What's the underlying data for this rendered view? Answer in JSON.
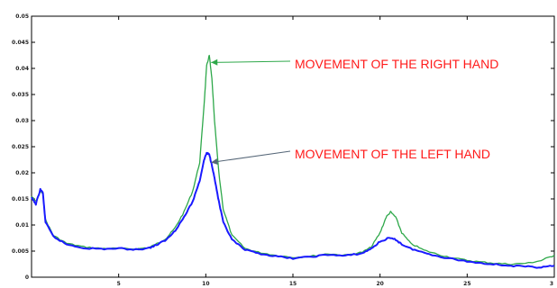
{
  "chart_data": {
    "type": "line",
    "title": "",
    "xlabel": "",
    "ylabel": "",
    "xlim": [
      0,
      60
    ],
    "ylim": [
      0,
      0.05
    ],
    "x_ticks": [
      0,
      10,
      20,
      30,
      40,
      50,
      60
    ],
    "x_tick_labels": [
      "",
      "5",
      "10",
      "15",
      "20",
      "25",
      "3"
    ],
    "y_ticks": [
      0,
      0.005,
      0.01,
      0.015,
      0.02,
      0.025,
      0.03,
      0.035,
      0.04,
      0.045,
      0.05
    ],
    "y_tick_labels": [
      "0",
      "0.005",
      "0.01",
      "0.015",
      "0.02",
      "0.025",
      "0.03",
      "0.035",
      "0.04",
      "0.045",
      "0.05"
    ],
    "grid": false,
    "series": [
      {
        "color": "#2ea84a",
        "points": [
          [
            0,
            0.0155
          ],
          [
            0.5,
            0.0145
          ],
          [
            1,
            0.0165
          ],
          [
            1.3,
            0.016
          ],
          [
            1.6,
            0.011
          ],
          [
            2.5,
            0.008
          ],
          [
            4,
            0.0065
          ],
          [
            6,
            0.0058
          ],
          [
            8,
            0.0055
          ],
          [
            10,
            0.0055
          ],
          [
            12,
            0.0054
          ],
          [
            13.5,
            0.0057
          ],
          [
            14.5,
            0.0065
          ],
          [
            15.5,
            0.0075
          ],
          [
            16.5,
            0.0095
          ],
          [
            17.5,
            0.0125
          ],
          [
            18.5,
            0.0165
          ],
          [
            19.3,
            0.022
          ],
          [
            19.8,
            0.033
          ],
          [
            20.1,
            0.0405
          ],
          [
            20.4,
            0.0425
          ],
          [
            20.7,
            0.038
          ],
          [
            21,
            0.03
          ],
          [
            21.5,
            0.02
          ],
          [
            22,
            0.013
          ],
          [
            23,
            0.008
          ],
          [
            24.5,
            0.0055
          ],
          [
            26,
            0.0048
          ],
          [
            28,
            0.0042
          ],
          [
            30,
            0.0038
          ],
          [
            32,
            0.004
          ],
          [
            34,
            0.0045
          ],
          [
            36,
            0.0042
          ],
          [
            38,
            0.0048
          ],
          [
            39,
            0.0058
          ],
          [
            40,
            0.0085
          ],
          [
            40.7,
            0.0115
          ],
          [
            41.2,
            0.0125
          ],
          [
            41.8,
            0.0115
          ],
          [
            42.5,
            0.0085
          ],
          [
            43.5,
            0.0065
          ],
          [
            45,
            0.0052
          ],
          [
            47,
            0.0042
          ],
          [
            49,
            0.0035
          ],
          [
            51,
            0.003
          ],
          [
            53,
            0.0027
          ],
          [
            55,
            0.0025
          ],
          [
            57,
            0.0027
          ],
          [
            58.5,
            0.0032
          ],
          [
            60,
            0.0042
          ]
        ]
      },
      {
        "color": "#1a1aff",
        "points": [
          [
            0,
            0.0152
          ],
          [
            0.5,
            0.014
          ],
          [
            1,
            0.0168
          ],
          [
            1.3,
            0.0162
          ],
          [
            1.6,
            0.0105
          ],
          [
            2.5,
            0.0078
          ],
          [
            4,
            0.0063
          ],
          [
            6,
            0.0056
          ],
          [
            8,
            0.0054
          ],
          [
            10,
            0.0055
          ],
          [
            12,
            0.0053
          ],
          [
            13.5,
            0.0056
          ],
          [
            14.5,
            0.0063
          ],
          [
            15.5,
            0.0072
          ],
          [
            16.5,
            0.009
          ],
          [
            17.5,
            0.0115
          ],
          [
            18.5,
            0.0145
          ],
          [
            19.3,
            0.0185
          ],
          [
            19.8,
            0.0225
          ],
          [
            20.1,
            0.0238
          ],
          [
            20.4,
            0.0235
          ],
          [
            20.7,
            0.0215
          ],
          [
            21,
            0.019
          ],
          [
            21.5,
            0.0145
          ],
          [
            22,
            0.0105
          ],
          [
            23,
            0.0072
          ],
          [
            24.5,
            0.0052
          ],
          [
            26,
            0.0046
          ],
          [
            28,
            0.004
          ],
          [
            30,
            0.0036
          ],
          [
            32,
            0.0039
          ],
          [
            34,
            0.0043
          ],
          [
            36,
            0.0041
          ],
          [
            38,
            0.0046
          ],
          [
            39,
            0.0055
          ],
          [
            40,
            0.0068
          ],
          [
            41,
            0.0075
          ],
          [
            41.8,
            0.0072
          ],
          [
            42.5,
            0.0063
          ],
          [
            43.5,
            0.0055
          ],
          [
            45,
            0.0047
          ],
          [
            47,
            0.0039
          ],
          [
            49,
            0.0033
          ],
          [
            51,
            0.0028
          ],
          [
            53,
            0.0025
          ],
          [
            55,
            0.0022
          ],
          [
            57,
            0.002
          ],
          [
            58.5,
            0.0019
          ],
          [
            60,
            0.0022
          ]
        ]
      }
    ],
    "annotations": [
      {
        "text": "MOVEMENT OF THE RIGHT HAND",
        "arrow_to": [
          20.2,
          0.042
        ],
        "arrow_color": "#2ea84a"
      },
      {
        "text": "MOVEMENT OF THE LEFT HAND",
        "arrow_to": [
          20.2,
          0.0225
        ],
        "arrow_color": "#556677"
      }
    ]
  }
}
